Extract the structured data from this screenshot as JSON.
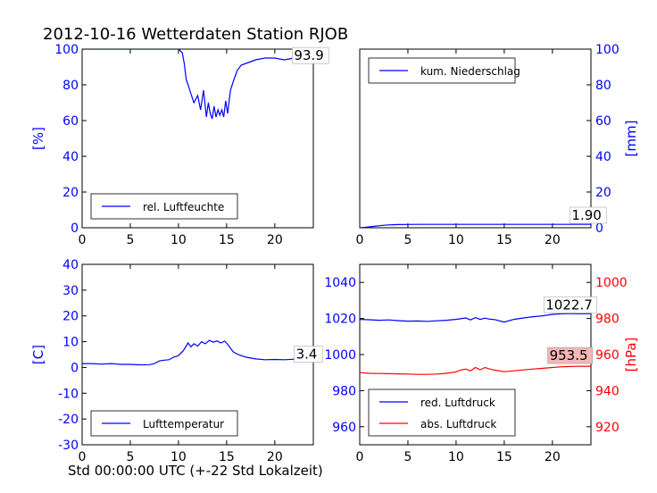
{
  "chart_data": {
    "type": "line",
    "title": "2012-10-16 Wetterdaten Station RJOB",
    "xlabel": "Std 00:00:00 UTC (+-22 Std Lokalzeit)",
    "colors": {
      "blue": "#0000ff",
      "red": "#ff0000"
    },
    "x_range": [
      0,
      24
    ],
    "x_ticks": [
      0,
      5,
      10,
      15,
      20
    ],
    "panels": [
      {
        "id": "humidity",
        "ylabel": "[%]",
        "ylabel_side": "left",
        "ylabel_color": "#0000ff",
        "ylim": [
          0,
          100
        ],
        "yticks": [
          0,
          20,
          40,
          60,
          80,
          100
        ],
        "legend_position": "lower-left",
        "annotations": [
          {
            "text": "93.9",
            "x": 22,
            "y": 93.9,
            "background": "none"
          }
        ],
        "series": [
          {
            "name": "rel. Luftfeuchte",
            "color": "#0000ff",
            "x": [
              0,
              2,
              4,
              6,
              8,
              10,
              10.4,
              10.6,
              10.8,
              11,
              11.3,
              11.6,
              12,
              12.3,
              12.6,
              12.9,
              13.1,
              13.3,
              13.5,
              13.7,
              13.9,
              14.1,
              14.3,
              14.5,
              14.7,
              14.9,
              15.1,
              15.4,
              15.7,
              16.1,
              16.5,
              17,
              17.5,
              18,
              19,
              20,
              21,
              22,
              23,
              24
            ],
            "y": [
              100,
              100,
              100,
              100,
              100,
              100,
              98,
              92,
              83,
              80,
              75,
              70,
              74,
              66,
              77,
              62,
              70,
              64,
              61,
              68,
              62,
              66,
              63,
              66,
              62,
              71,
              64,
              77,
              82,
              88,
              91,
              92,
              93,
              94,
              95,
              95,
              94,
              95,
              96,
              96
            ]
          }
        ]
      },
      {
        "id": "precip",
        "ylabel": "[mm]",
        "ylabel_side": "right",
        "ylabel_color": "#0000ff",
        "ylim": [
          0,
          100
        ],
        "yticks": [
          0,
          20,
          40,
          60,
          80,
          100
        ],
        "legend_position": "upper-left",
        "annotations": [
          {
            "text": "1.90",
            "x": 22,
            "y": 4.5,
            "background": "none"
          }
        ],
        "series": [
          {
            "name": "kum. Niederschlag",
            "color": "#0000ff",
            "x": [
              0,
              0.5,
              1,
              1.5,
              2,
              2.5,
              3,
              3.5,
              4,
              5,
              6,
              8,
              10,
              12,
              14,
              16,
              18,
              20,
              22,
              24
            ],
            "y": [
              0,
              0.2,
              0.5,
              0.8,
              1.1,
              1.4,
              1.6,
              1.7,
              1.8,
              1.85,
              1.88,
              1.9,
              1.9,
              1.9,
              1.9,
              1.9,
              1.9,
              1.9,
              1.9,
              1.9
            ]
          }
        ]
      },
      {
        "id": "temperature",
        "ylabel": "[C]",
        "ylabel_side": "left",
        "ylabel_color": "#0000ff",
        "ylim": [
          -30,
          40
        ],
        "yticks": [
          -30,
          -20,
          -10,
          0,
          10,
          20,
          30,
          40
        ],
        "legend_position": "lower-left",
        "annotations": [
          {
            "text": "3.4",
            "x": 22.2,
            "y": 3.4,
            "background": "none"
          }
        ],
        "series": [
          {
            "name": "Lufttemperatur",
            "color": "#0000ff",
            "x": [
              0,
              1,
              2,
              3,
              4,
              5,
              6,
              7,
              7.5,
              8,
              8.5,
              9,
              9.5,
              10,
              10.5,
              11,
              11.3,
              11.6,
              12,
              12.4,
              12.8,
              13.2,
              13.6,
              14,
              14.4,
              14.8,
              15.1,
              15.4,
              15.7,
              16.2,
              17,
              18,
              19,
              20,
              21,
              22,
              23,
              24
            ],
            "y": [
              1.5,
              1.5,
              1.3,
              1.5,
              1.2,
              1.2,
              1.0,
              1.1,
              1.5,
              2.5,
              2.8,
              3.0,
              4.0,
              4.6,
              6.5,
              9.5,
              8.0,
              9.2,
              8.3,
              10.0,
              9.2,
              10.5,
              9.8,
              10.3,
              9.5,
              10.2,
              9.0,
              7.5,
              6.0,
              5.0,
              4.0,
              3.3,
              3.0,
              3.1,
              3.0,
              3.2,
              3.3,
              3.4
            ]
          }
        ]
      },
      {
        "id": "pressure",
        "ylabel": "[hPa]",
        "ylabel_side": "right",
        "ylabel_color": "#ff0000",
        "ylim_left": [
          950,
          1050
        ],
        "yticks_left": [
          960,
          980,
          1000,
          1020,
          1040
        ],
        "yticks_left_color": "#0000ff",
        "ylim_right": [
          910,
          1010
        ],
        "yticks_right": [
          920,
          940,
          960,
          980,
          1000
        ],
        "yticks_right_color": "#ff0000",
        "legend_position": "lower-left",
        "annotations": [
          {
            "text": "1022.7",
            "x": 19.3,
            "y": 1025.0,
            "background": "none"
          },
          {
            "text": "953.5",
            "x": 19.7,
            "y": 997.0,
            "background": "#f4b6b6"
          }
        ],
        "series": [
          {
            "name": "red. Luftdruck",
            "color": "#0000ff",
            "axis": "left",
            "x": [
              0,
              1,
              2,
              3,
              4,
              5,
              6,
              7,
              8,
              9,
              10,
              11,
              11.5,
              12,
              12.5,
              13,
              13.5,
              14,
              15,
              16,
              17,
              18,
              19,
              20,
              21,
              22,
              23,
              24
            ],
            "y": [
              1019.5,
              1019.3,
              1019.0,
              1019.2,
              1018.8,
              1018.5,
              1018.6,
              1018.4,
              1018.7,
              1019.0,
              1019.5,
              1020.3,
              1019.2,
              1020.5,
              1019.5,
              1020.2,
              1019.6,
              1019.4,
              1018.0,
              1019.5,
              1020.3,
              1021.0,
              1021.5,
              1022.3,
              1022.6,
              1022.7,
              1022.6,
              1022.7
            ]
          },
          {
            "name": "abs. Luftdruck",
            "color": "#ff0000",
            "axis": "right",
            "x": [
              0,
              1,
              2,
              3,
              4,
              5,
              6,
              7,
              8,
              9,
              10,
              10.5,
              11,
              11.5,
              12,
              12.5,
              13,
              13.5,
              14,
              15,
              16,
              17,
              18,
              19,
              20,
              21,
              22,
              23,
              24
            ],
            "y": [
              950.0,
              949.6,
              949.5,
              949.4,
              949.3,
              949.2,
              949.0,
              949.0,
              949.2,
              949.6,
              950.4,
              951.5,
              952.0,
              951.0,
              952.8,
              951.6,
              952.8,
              952.0,
              951.4,
              950.5,
              951.0,
              951.5,
              952.0,
              952.4,
              952.8,
              953.2,
              953.4,
              953.5,
              953.5
            ]
          }
        ]
      }
    ]
  }
}
